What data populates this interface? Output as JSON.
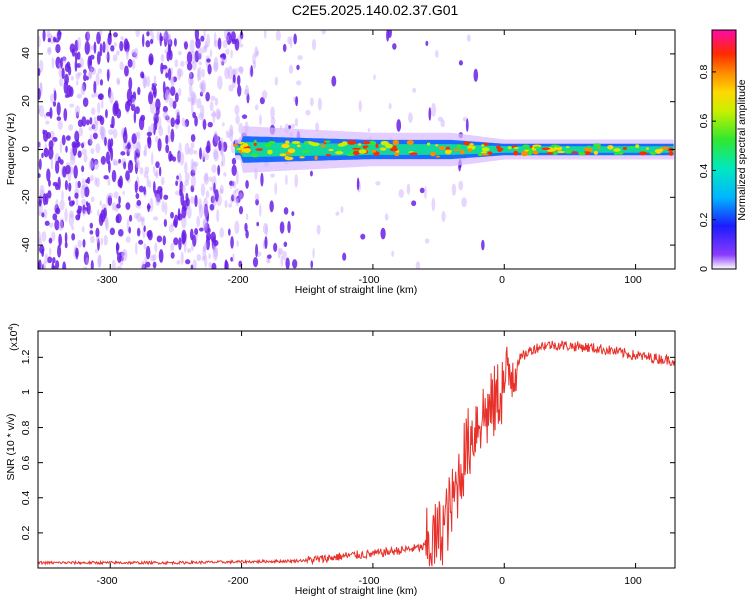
{
  "page": {
    "title": "C2E5.2025.140.02.37.G01"
  },
  "colors": {
    "snr_line": "#e8312a",
    "speckle": "#6a1ee6",
    "speckle_light": "#c9a6ff"
  },
  "chart_data": [
    {
      "type": "heatmap",
      "title": "",
      "xlabel": "Height of straight line (km)",
      "ylabel": "Frequency (Hz)",
      "xlim": [
        -355,
        130
      ],
      "ylim": [
        -50,
        50
      ],
      "xticks": [
        -300,
        -200,
        -100,
        0,
        100
      ],
      "yticks": [
        -40,
        -20,
        0,
        20,
        40
      ],
      "colorbar": {
        "label": "Normalized spectral amplitude",
        "range": [
          0.0,
          0.97
        ],
        "ticks": [
          0.0,
          0.2,
          0.4,
          0.6,
          0.8
        ],
        "colormap": "rainbow (purple-blue-cyan-green-yellow-orange-red-magenta)"
      },
      "features": {
        "noise_region_x": [
          -355,
          -155
        ],
        "signal_band_x": [
          -205,
          130
        ],
        "signal_center_frequency_hz": 0,
        "band_halfwidth_hz_at_x": [
          [
            -200,
            7
          ],
          [
            -100,
            5
          ],
          [
            -40,
            5
          ],
          [
            0,
            3
          ],
          [
            130,
            3
          ]
        ]
      }
    },
    {
      "type": "line",
      "title": "",
      "xlabel": "Height of straight line (km)",
      "ylabel": "SNR (10 * v/v)",
      "scale_note": "(x10",
      "scale_exp": "4",
      "scale_close": ")",
      "xlim": [
        -355,
        130
      ],
      "ylim": [
        0,
        1.35
      ],
      "xticks": [
        -300,
        -200,
        -100,
        0,
        100
      ],
      "yticks": [
        0.2,
        0.4,
        0.6,
        0.8,
        1.0,
        1.2
      ],
      "series": [
        {
          "x": [
            -355,
            -300,
            -250,
            -200,
            -160,
            -140,
            -120,
            -100,
            -80,
            -60,
            -50,
            -40,
            -30,
            -20,
            -10,
            0,
            10,
            20,
            30,
            40,
            60,
            80,
            100,
            120,
            130
          ],
          "y": [
            0.03,
            0.03,
            0.03,
            0.035,
            0.04,
            0.05,
            0.07,
            0.08,
            0.1,
            0.12,
            0.18,
            0.35,
            0.65,
            0.85,
            0.9,
            1.05,
            1.18,
            1.24,
            1.27,
            1.27,
            1.26,
            1.24,
            1.21,
            1.19,
            1.18
          ]
        }
      ]
    }
  ]
}
